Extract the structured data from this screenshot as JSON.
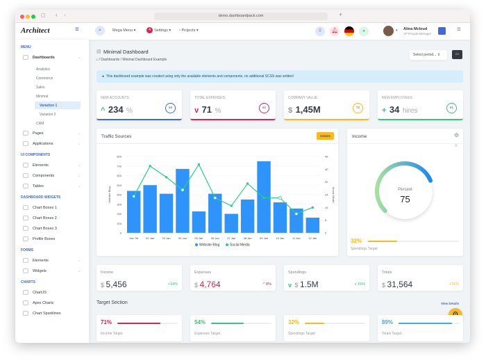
{
  "browser": {
    "url": "demo.dashboardpack.com"
  },
  "header": {
    "logo": "Architect",
    "menus": [
      "Mega Menu",
      "Settings",
      "Projects"
    ],
    "settings_badge": "4",
    "user_name": "Alina Mcloud",
    "user_role": "VP People Manager"
  },
  "sidebar": {
    "sections": [
      {
        "title": "MENU",
        "items": [
          {
            "label": "Dashboards",
            "bold": true,
            "sub": [
              "Analytics",
              "Commerce",
              "Sales",
              "Minimal",
              "Variation 1",
              "Variation 2",
              "CRM"
            ]
          },
          {
            "label": "Pages"
          },
          {
            "label": "Applications"
          }
        ]
      },
      {
        "title": "UI COMPONENTS",
        "items": [
          {
            "label": "Elements"
          },
          {
            "label": "Components"
          },
          {
            "label": "Tables"
          }
        ]
      },
      {
        "title": "DASHBOARD WIDGETS",
        "items": [
          {
            "label": "Chart Boxes 1"
          },
          {
            "label": "Chart Boxes 2"
          },
          {
            "label": "Chart Boxes 3"
          },
          {
            "label": "Profile Boxes"
          }
        ]
      },
      {
        "title": "FORMS",
        "items": [
          {
            "label": "Elements"
          },
          {
            "label": "Widgets"
          }
        ]
      },
      {
        "title": "CHARTS",
        "items": [
          {
            "label": "ChartJS"
          },
          {
            "label": "Apex Charts"
          },
          {
            "label": "Chart Sparklines"
          }
        ]
      }
    ],
    "active": "Variation 1"
  },
  "page": {
    "title": "Minimal Dashboard",
    "breadcrumb": [
      "Dashboards",
      "Minimal Dashboard Example"
    ],
    "period_select": "Select period...",
    "alert": "This dashboard example was created using only the available elements and components, no additional SCSS was written!"
  },
  "stats": [
    {
      "label": "NEW ACCOUNTS",
      "prefix": "^",
      "value": "234",
      "unit": "%",
      "ring": "58",
      "color": "#3f6ad8",
      "prefix_color": "#3ac47d"
    },
    {
      "label": "TOTAL EXPENSES",
      "prefix": "v",
      "value": "71",
      "unit": "%",
      "ring": "62",
      "color": "#d92550",
      "prefix_color": "#d92550"
    },
    {
      "label": "COMPANY VALUE",
      "prefix": "$",
      "value": "1,45M",
      "unit": "",
      "ring": "72",
      "color": "#f7b924",
      "prefix_color": "#999"
    },
    {
      "label": "NEW EMPLOYEES",
      "prefix": "+",
      "value": "34",
      "unit": "hires",
      "ring": "81",
      "color": "#3ac47d",
      "prefix_color": "#3ac47d"
    }
  ],
  "traffic": {
    "title": "Traffic Sources",
    "actions": "Actions"
  },
  "chart_data": {
    "type": "bar",
    "categories": [
      "Jan '06",
      "02 Jan",
      "03 Jan",
      "04 Jan",
      "05 Jan",
      "06 Jan",
      "07 Jan",
      "08 Jan",
      "09 Jan",
      "10 Jan",
      "11 Jan",
      "12 Jan"
    ],
    "series": [
      {
        "name": "Website Blog",
        "type": "bar",
        "axis": "left",
        "color": "#2e93fa",
        "values": [
          440,
          500,
          410,
          670,
          225,
          410,
          200,
          350,
          750,
          320,
          255,
          160
        ]
      },
      {
        "name": "Social Media",
        "type": "line",
        "axis": "right",
        "color": "#24d08b",
        "values": [
          23,
          42,
          35,
          27,
          43,
          22,
          17,
          31,
          22,
          22,
          12,
          16
        ]
      }
    ],
    "ylabel": "Website Blog",
    "y2label": "Social Media",
    "ylim": [
      0,
      800
    ],
    "y2lim": [
      0,
      48
    ],
    "yticks": [
      "0",
      "100",
      "200",
      "300",
      "400",
      "500",
      "600",
      "700",
      "800"
    ],
    "y2ticks": [
      "0",
      "8",
      "16",
      "24",
      "32",
      "40",
      "48"
    ],
    "legend": "bottom",
    "grid": true
  },
  "income": {
    "title": "Income",
    "gauge_label": "Percent",
    "gauge_value": "75",
    "gauge_percent": 75,
    "target_pct": "32%",
    "target_fill": 32,
    "target_label": "Spendings Target"
  },
  "summary": [
    {
      "label": "Income",
      "value": "5,456",
      "change": "+14%",
      "color": "#343a40",
      "change_color": "#3ac47d",
      "arrow": ""
    },
    {
      "label": "Expenses",
      "value": "4,764",
      "change": "^ 8%",
      "color": "#d92550",
      "change_color": "#d92550",
      "arrow": ""
    },
    {
      "label": "Spendings",
      "value": "1.5M",
      "change": "v 15%",
      "color": "#343a40",
      "change_color": "#3ac47d",
      "arrow": "v"
    },
    {
      "label": "Totals",
      "value": "31,564",
      "change": "+76%",
      "color": "#343a40",
      "change_color": "#f7b924",
      "arrow": ""
    }
  ],
  "targets": {
    "title": "Target Section",
    "view_details": "View Details",
    "items": [
      {
        "pct": "71%",
        "fill": 71,
        "label": "Income Target",
        "color": "#d92550"
      },
      {
        "pct": "54%",
        "fill": 54,
        "label": "Expenses Target",
        "color": "#3ac47d"
      },
      {
        "pct": "32%",
        "fill": 32,
        "label": "Spendings Target",
        "color": "#f7b924"
      },
      {
        "pct": "89%",
        "fill": 89,
        "label": "Totals Target",
        "color": "#30b1ff"
      }
    ]
  }
}
